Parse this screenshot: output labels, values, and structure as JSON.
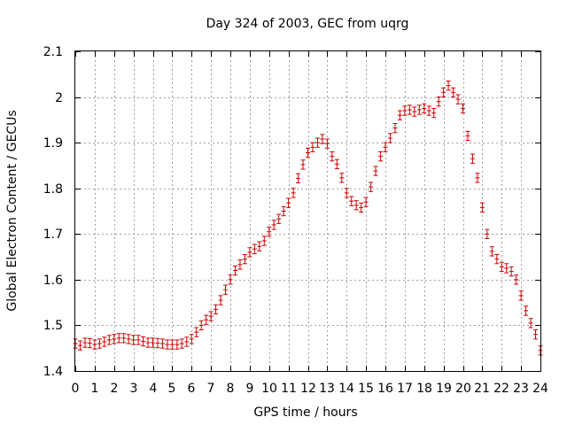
{
  "chart_data": {
    "type": "scatter",
    "title": "Day 324 of 2003, GEC from uqrg",
    "xlabel": "GPS time / hours",
    "ylabel": "Global Electron Content / GECUs",
    "xlim": [
      0,
      24
    ],
    "ylim": [
      1.4,
      2.1
    ],
    "xticks": [
      "0",
      "1",
      "2",
      "3",
      "4",
      "5",
      "6",
      "7",
      "8",
      "9",
      "10",
      "11",
      "12",
      "13",
      "14",
      "15",
      "16",
      "17",
      "18",
      "19",
      "20",
      "21",
      "22",
      "23",
      "24"
    ],
    "yticks": [
      "1.4",
      "1.5",
      "1.6",
      "1.7",
      "1.8",
      "1.9",
      "2",
      "2.1"
    ],
    "grid": true,
    "legend": "none",
    "error_bar": 0.01,
    "point_color": "#cc0000",
    "series": [
      {
        "x": [
          0,
          0.25,
          0.5,
          0.75,
          1,
          1.25,
          1.5,
          1.75,
          2,
          2.25,
          2.5,
          2.75,
          3,
          3.25,
          3.5,
          3.75,
          4,
          4.25,
          4.5,
          4.75,
          5,
          5.25,
          5.5,
          5.75,
          6,
          6.25,
          6.5,
          6.75,
          7,
          7.25,
          7.5,
          7.75,
          8,
          8.25,
          8.5,
          8.75,
          9,
          9.25,
          9.5,
          9.75,
          10,
          10.25,
          10.5,
          10.75,
          11,
          11.25,
          11.5,
          11.75,
          12,
          12.25,
          12.5,
          12.75,
          13,
          13.25,
          13.5,
          13.75,
          14,
          14.25,
          14.5,
          14.75,
          15,
          15.25,
          15.5,
          15.75,
          16,
          16.25,
          16.5,
          16.75,
          17,
          17.25,
          17.5,
          17.75,
          18,
          18.25,
          18.5,
          18.75,
          19,
          19.25,
          19.5,
          19.75,
          20,
          20.25,
          20.5,
          20.75,
          21,
          21.25,
          21.5,
          21.75,
          22,
          22.25,
          22.5,
          22.75,
          23,
          23.25,
          23.5,
          23.75,
          24
        ],
        "y": [
          1.46,
          1.456,
          1.462,
          1.461,
          1.458,
          1.46,
          1.464,
          1.468,
          1.47,
          1.472,
          1.472,
          1.47,
          1.468,
          1.468,
          1.465,
          1.462,
          1.462,
          1.461,
          1.46,
          1.458,
          1.458,
          1.458,
          1.46,
          1.464,
          1.47,
          1.485,
          1.5,
          1.512,
          1.52,
          1.535,
          1.555,
          1.578,
          1.6,
          1.62,
          1.633,
          1.645,
          1.66,
          1.667,
          1.673,
          1.685,
          1.705,
          1.72,
          1.733,
          1.75,
          1.768,
          1.79,
          1.822,
          1.852,
          1.878,
          1.89,
          1.9,
          1.908,
          1.898,
          1.87,
          1.853,
          1.823,
          1.79,
          1.772,
          1.763,
          1.758,
          1.77,
          1.803,
          1.838,
          1.87,
          1.89,
          1.91,
          1.932,
          1.96,
          1.97,
          1.972,
          1.968,
          1.972,
          1.975,
          1.97,
          1.965,
          1.99,
          2.01,
          2.025,
          2.01,
          1.995,
          1.975,
          1.915,
          1.865,
          1.823,
          1.758,
          1.7,
          1.662,
          1.645,
          1.628,
          1.625,
          1.618,
          1.6,
          1.565,
          1.532,
          1.505,
          1.48,
          1.445
        ]
      }
    ]
  }
}
